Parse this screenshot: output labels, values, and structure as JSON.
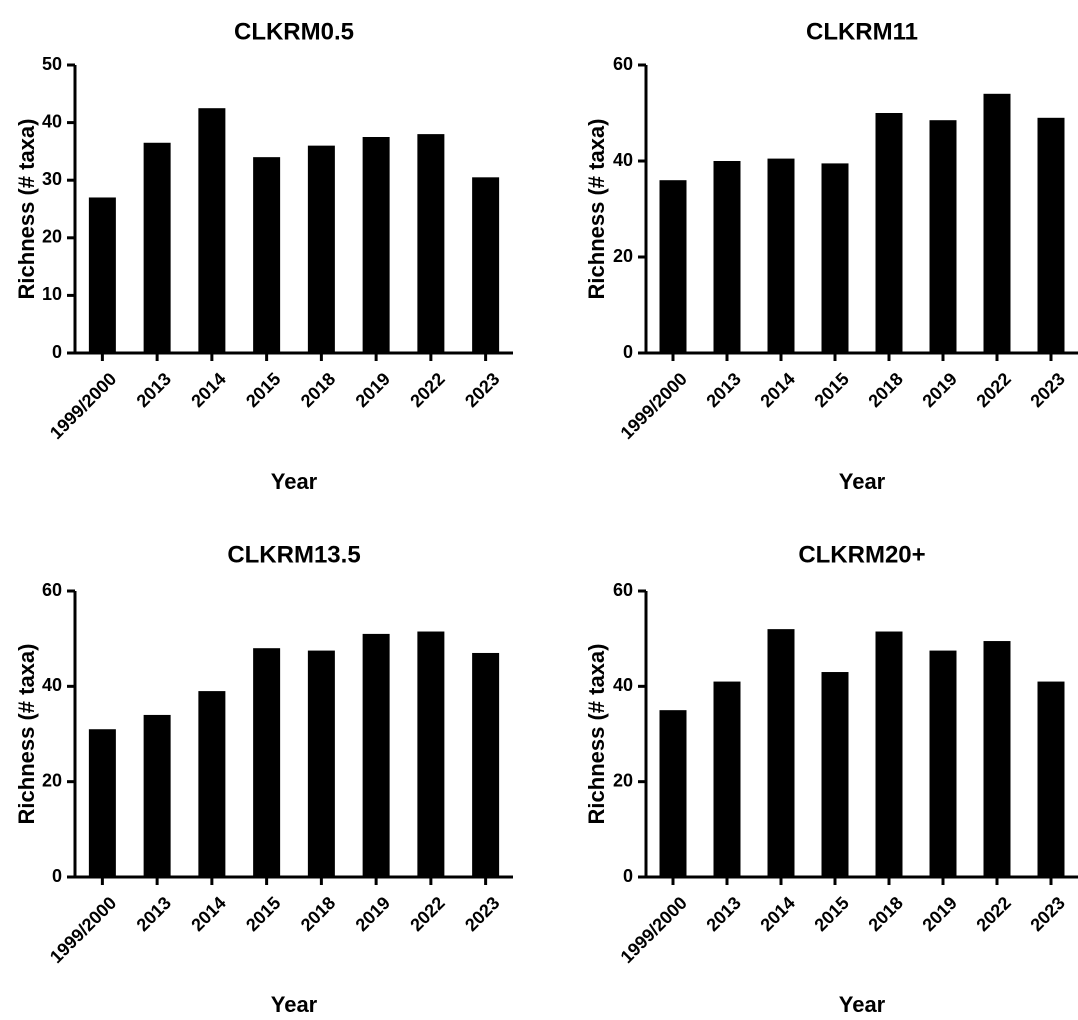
{
  "chart_data": [
    {
      "type": "bar",
      "title": "CLKRM0.5",
      "xlabel": "Year",
      "ylabel": "Richness (# taxa)",
      "categories": [
        "1999/2000",
        "2013",
        "2014",
        "2015",
        "2018",
        "2019",
        "2022",
        "2023"
      ],
      "values": [
        27,
        36.5,
        42.5,
        34,
        36,
        37.5,
        38,
        30.5
      ],
      "ylim": [
        0,
        50
      ],
      "yticks": [
        0,
        10,
        20,
        30,
        40,
        50
      ],
      "grid": false,
      "bar_color": "#000000"
    },
    {
      "type": "bar",
      "title": "CLKRM11",
      "xlabel": "Year",
      "ylabel": "Richness (# taxa)",
      "categories": [
        "1999/2000",
        "2013",
        "2014",
        "2015",
        "2018",
        "2019",
        "2022",
        "2023"
      ],
      "values": [
        36,
        40,
        40.5,
        39.5,
        50,
        48.5,
        54,
        49
      ],
      "ylim": [
        0,
        60
      ],
      "yticks": [
        0,
        20,
        40,
        60
      ],
      "grid": false,
      "bar_color": "#000000"
    },
    {
      "type": "bar",
      "title": "CLKRM13.5",
      "xlabel": "Year",
      "ylabel": "Richness (# taxa)",
      "categories": [
        "1999/2000",
        "2013",
        "2014",
        "2015",
        "2018",
        "2019",
        "2022",
        "2023"
      ],
      "values": [
        31,
        34,
        39,
        48,
        47.5,
        51,
        51.5,
        47
      ],
      "ylim": [
        0,
        60
      ],
      "yticks": [
        0,
        20,
        40,
        60
      ],
      "grid": false,
      "bar_color": "#000000"
    },
    {
      "type": "bar",
      "title": "CLKRM20+",
      "xlabel": "Year",
      "ylabel": "Richness (# taxa)",
      "categories": [
        "1999/2000",
        "2013",
        "2014",
        "2015",
        "2018",
        "2019",
        "2022",
        "2023"
      ],
      "values": [
        35,
        41,
        52,
        43,
        51.5,
        47.5,
        49.5,
        41
      ],
      "ylim": [
        0,
        60
      ],
      "yticks": [
        0,
        20,
        40,
        60
      ],
      "grid": false,
      "bar_color": "#000000"
    }
  ]
}
